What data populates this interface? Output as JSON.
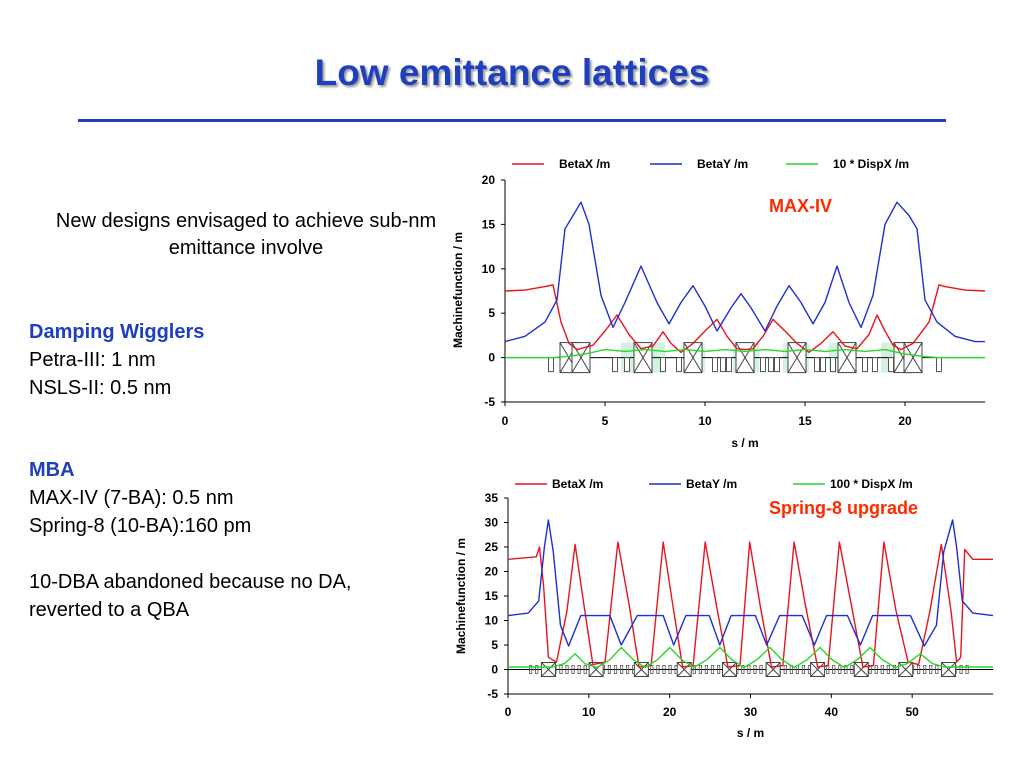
{
  "slide": {
    "title": "Low emittance lattices",
    "intro": "New designs envisaged to achieve sub-nm emittance involve",
    "damping": {
      "heading": "Damping Wigglers",
      "lines": [
        "Petra-III: 1 nm",
        "NSLS-II: 0.5 nm"
      ]
    },
    "mba": {
      "heading": "MBA",
      "lines": [
        "MAX-IV (7-BA): 0.5 nm",
        "Spring-8 (10-BA):160 pm"
      ]
    },
    "note": {
      "lines": [
        "10-DBA abandoned because no DA,",
        "reverted to a QBA"
      ]
    }
  },
  "colors": {
    "title": "#1f3fbf",
    "betax": "#e8141c",
    "betay": "#1f2fd0",
    "dispx": "#2ad62a",
    "label": "#ff2a00",
    "magnet": "#444444"
  },
  "chart_data": [
    {
      "type": "line",
      "machine": "MAX-IV",
      "xlabel": "s / m",
      "ylabel": "Machinefunction / m",
      "xlim": [
        0,
        24
      ],
      "ylim": [
        -5,
        20
      ],
      "xticks": [
        0,
        5,
        10,
        15,
        20
      ],
      "yticks": [
        -5,
        0,
        5,
        10,
        15,
        20
      ],
      "grid": false,
      "legend_position": "top",
      "series": [
        {
          "name": "BetaX /m",
          "color": "#e8141c",
          "x": [
            0,
            1.0,
            2.0,
            2.4,
            2.8,
            3.2,
            3.6,
            4.4,
            5.0,
            5.6,
            6.2,
            6.8,
            7.4,
            7.9,
            8.3,
            8.8,
            9.4,
            10.0,
            10.6,
            11.1,
            11.6,
            12.0,
            12.4,
            12.9,
            13.4,
            14.0,
            14.6,
            15.2,
            15.8,
            16.4,
            17.0,
            17.6,
            18.2,
            18.6,
            19.0,
            19.4,
            19.8,
            20.4,
            21.2,
            21.7,
            22.0,
            23.0,
            24.0
          ],
          "y": [
            7.5,
            7.6,
            8.0,
            8.2,
            4.0,
            1.6,
            0.9,
            1.4,
            3.0,
            4.8,
            2.6,
            1.0,
            1.3,
            2.9,
            1.6,
            0.6,
            1.6,
            3.0,
            4.3,
            2.4,
            1.0,
            0.9,
            1.0,
            2.4,
            4.3,
            3.0,
            1.6,
            0.6,
            1.6,
            2.9,
            1.3,
            1.0,
            2.6,
            4.8,
            3.0,
            1.4,
            0.9,
            1.6,
            4.0,
            8.2,
            8.0,
            7.6,
            7.5
          ]
        },
        {
          "name": "BetaY /m",
          "color": "#1f2fd0",
          "x": [
            0,
            1.0,
            2.0,
            2.6,
            3.0,
            3.4,
            3.8,
            4.2,
            4.8,
            5.4,
            6.0,
            6.8,
            7.6,
            8.2,
            8.8,
            9.4,
            10.0,
            10.6,
            11.3,
            11.8,
            12.3,
            13.0,
            13.6,
            14.2,
            14.8,
            15.4,
            16.0,
            16.6,
            17.2,
            17.8,
            18.4,
            19.0,
            19.6,
            20.2,
            20.6,
            21.0,
            21.6,
            22.5,
            23.5,
            24.0
          ],
          "y": [
            1.8,
            2.4,
            4.0,
            6.5,
            14.5,
            16.0,
            17.5,
            15.0,
            7.0,
            3.4,
            6.2,
            10.3,
            6.2,
            3.8,
            6.2,
            8.1,
            5.8,
            3.0,
            5.6,
            7.2,
            5.6,
            3.0,
            5.8,
            8.1,
            6.2,
            3.8,
            6.2,
            10.3,
            6.2,
            3.4,
            7.0,
            15.0,
            17.5,
            16.0,
            14.5,
            6.5,
            4.0,
            2.4,
            1.8,
            1.8
          ]
        },
        {
          "name": "10 * DispX /m",
          "color": "#2ad62a",
          "x": [
            0,
            2.4,
            3.0,
            4.0,
            5.0,
            6.0,
            7.0,
            8.0,
            9.0,
            10.0,
            11.0,
            12.0,
            13.0,
            14.0,
            15.0,
            16.0,
            17.0,
            18.0,
            19.0,
            20.0,
            21.0,
            21.7,
            24.0
          ],
          "y": [
            0,
            0,
            0.1,
            0.4,
            0.9,
            0.7,
            0.9,
            0.7,
            0.9,
            0.7,
            0.9,
            0.7,
            0.9,
            0.7,
            0.9,
            0.7,
            0.9,
            0.7,
            0.9,
            0.4,
            0.1,
            0,
            0
          ]
        }
      ]
    },
    {
      "type": "line",
      "machine": "Spring-8 upgrade",
      "xlabel": "s / m",
      "ylabel": "Machinefunction / m",
      "xlim": [
        0,
        60
      ],
      "ylim": [
        -5,
        35
      ],
      "xticks": [
        0,
        10,
        20,
        30,
        40,
        50
      ],
      "yticks": [
        -5,
        0,
        5,
        10,
        15,
        20,
        25,
        30,
        35
      ],
      "grid": false,
      "legend_position": "top",
      "series": [
        {
          "name": "BetaX /m",
          "color": "#e8141c",
          "x": [
            0,
            3.5,
            3.9,
            4.4,
            5.0,
            6.0,
            7.3,
            8.3,
            9.5,
            10.5,
            12.0,
            13.6,
            15.0,
            16.2,
            17.7,
            19.2,
            20.4,
            21.6,
            22.9,
            24.4,
            25.8,
            27.2,
            28.7,
            29.9,
            31.2,
            32.6,
            34.0,
            35.4,
            36.8,
            38.3,
            39.6,
            41.0,
            42.5,
            43.9,
            45.2,
            46.5,
            48.0,
            49.5,
            50.8,
            52.2,
            53.6,
            54.8,
            55.5,
            56.0,
            56.5,
            57.5,
            60.0
          ],
          "y": [
            22.5,
            23,
            25,
            17,
            2.5,
            1.5,
            12,
            25.5,
            12,
            1,
            1.5,
            26,
            13,
            0.5,
            0.8,
            26,
            13,
            0.5,
            0.8,
            26,
            13,
            0.5,
            0.8,
            26,
            13,
            0.5,
            0.8,
            26,
            13,
            0.5,
            0.8,
            26,
            13,
            0.5,
            0.8,
            26,
            12,
            1.5,
            1,
            12,
            25.5,
            12,
            1.5,
            2.5,
            24.5,
            22.5,
            22.5
          ]
        },
        {
          "name": "BetaY /m",
          "color": "#1f2fd0",
          "x": [
            0,
            2.5,
            3.8,
            4.5,
            5.0,
            5.6,
            6.5,
            7.5,
            9.0,
            11.0,
            12.6,
            14.0,
            16.0,
            17.7,
            19.2,
            20.5,
            22.0,
            23.6,
            24.9,
            26.2,
            27.6,
            29.2,
            30.6,
            32.0,
            33.6,
            35.0,
            36.4,
            37.9,
            39.4,
            40.7,
            42.0,
            43.6,
            45.1,
            46.5,
            48.0,
            49.8,
            51.5,
            53.0,
            53.9,
            55.0,
            55.5,
            56.2,
            57.5,
            60.0
          ],
          "y": [
            11,
            11.5,
            14,
            25,
            30.5,
            24,
            9,
            4.8,
            11,
            11,
            11,
            5,
            11,
            11,
            11,
            5,
            11,
            11,
            11,
            5,
            11,
            11,
            11,
            5,
            11,
            11,
            11,
            5,
            11,
            11,
            11,
            5,
            11,
            11,
            11,
            11,
            4.8,
            9,
            24,
            30.5,
            25,
            14,
            11.5,
            11
          ]
        },
        {
          "name": "100 * DispX /m",
          "color": "#2ad62a",
          "x": [
            0,
            4.0,
            5.5,
            7.0,
            8.3,
            9.5,
            11.0,
            12.6,
            14.0,
            15.5,
            17.0,
            18.5,
            20.0,
            21.5,
            23.0,
            24.6,
            26.2,
            27.7,
            29.2,
            30.8,
            32.4,
            33.9,
            35.4,
            37.0,
            38.6,
            40.1,
            41.6,
            43.2,
            44.8,
            46.3,
            47.9,
            49.4,
            51.0,
            52.5,
            54.0,
            55.5,
            60.0
          ],
          "y": [
            0.5,
            0.5,
            0.5,
            1.2,
            3.2,
            1.2,
            0.4,
            2.0,
            4.5,
            2.0,
            0.4,
            2.0,
            4.5,
            2.0,
            0.4,
            2.0,
            4.5,
            2.0,
            0.4,
            2.0,
            4.5,
            2.0,
            0.4,
            2.0,
            4.5,
            2.0,
            0.4,
            2.0,
            4.5,
            2.0,
            0.4,
            1.2,
            3.2,
            1.2,
            0.5,
            0.5,
            0.5
          ]
        }
      ]
    }
  ]
}
